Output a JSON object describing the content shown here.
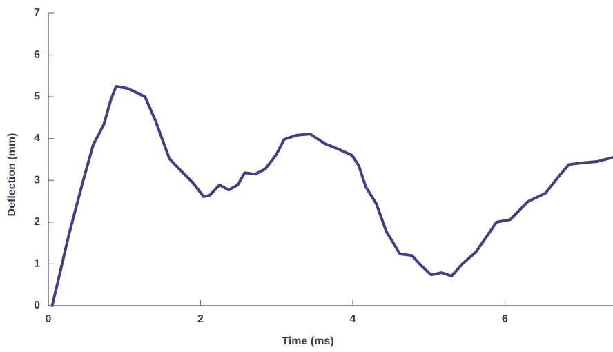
{
  "chart_data": {
    "type": "line",
    "x_label": "Time (ms)",
    "y_label": "Deflection (mm)",
    "xlim": [
      0,
      7.42
    ],
    "xticks": [
      0,
      2,
      4,
      6
    ],
    "ylim": [
      0,
      7
    ],
    "yticks": [
      0,
      1,
      2,
      3,
      4,
      5,
      6,
      7
    ],
    "grid": false,
    "series": [
      {
        "name": "Deflection",
        "color": "#4b3a84",
        "x": [
          0.05,
          0.09,
          0.27,
          0.45,
          0.59,
          0.73,
          0.82,
          0.89,
          1.04,
          1.18,
          1.27,
          1.41,
          1.59,
          1.72,
          1.9,
          2.04,
          2.12,
          2.25,
          2.37,
          2.49,
          2.58,
          2.72,
          2.85,
          2.99,
          3.1,
          3.26,
          3.44,
          3.63,
          3.81,
          3.99,
          4.08,
          4.17,
          4.31,
          4.44,
          4.62,
          4.78,
          4.9,
          5.03,
          5.17,
          5.3,
          5.44,
          5.62,
          5.89,
          6.07,
          6.3,
          6.53,
          6.71,
          6.84,
          7.03,
          7.21,
          7.42
        ],
        "values": [
          0,
          0.3,
          1.7,
          2.94,
          3.85,
          4.34,
          4.92,
          5.25,
          5.2,
          5.08,
          5.0,
          4.42,
          3.52,
          3.27,
          2.94,
          2.61,
          2.64,
          2.89,
          2.77,
          2.89,
          3.18,
          3.15,
          3.27,
          3.6,
          3.98,
          4.08,
          4.11,
          3.88,
          3.75,
          3.6,
          3.35,
          2.85,
          2.44,
          1.78,
          1.24,
          1.2,
          0.96,
          0.74,
          0.79,
          0.71,
          1.0,
          1.29,
          2.0,
          2.06,
          2.49,
          2.69,
          3.1,
          3.38,
          3.42,
          3.45,
          3.55
        ]
      }
    ]
  }
}
